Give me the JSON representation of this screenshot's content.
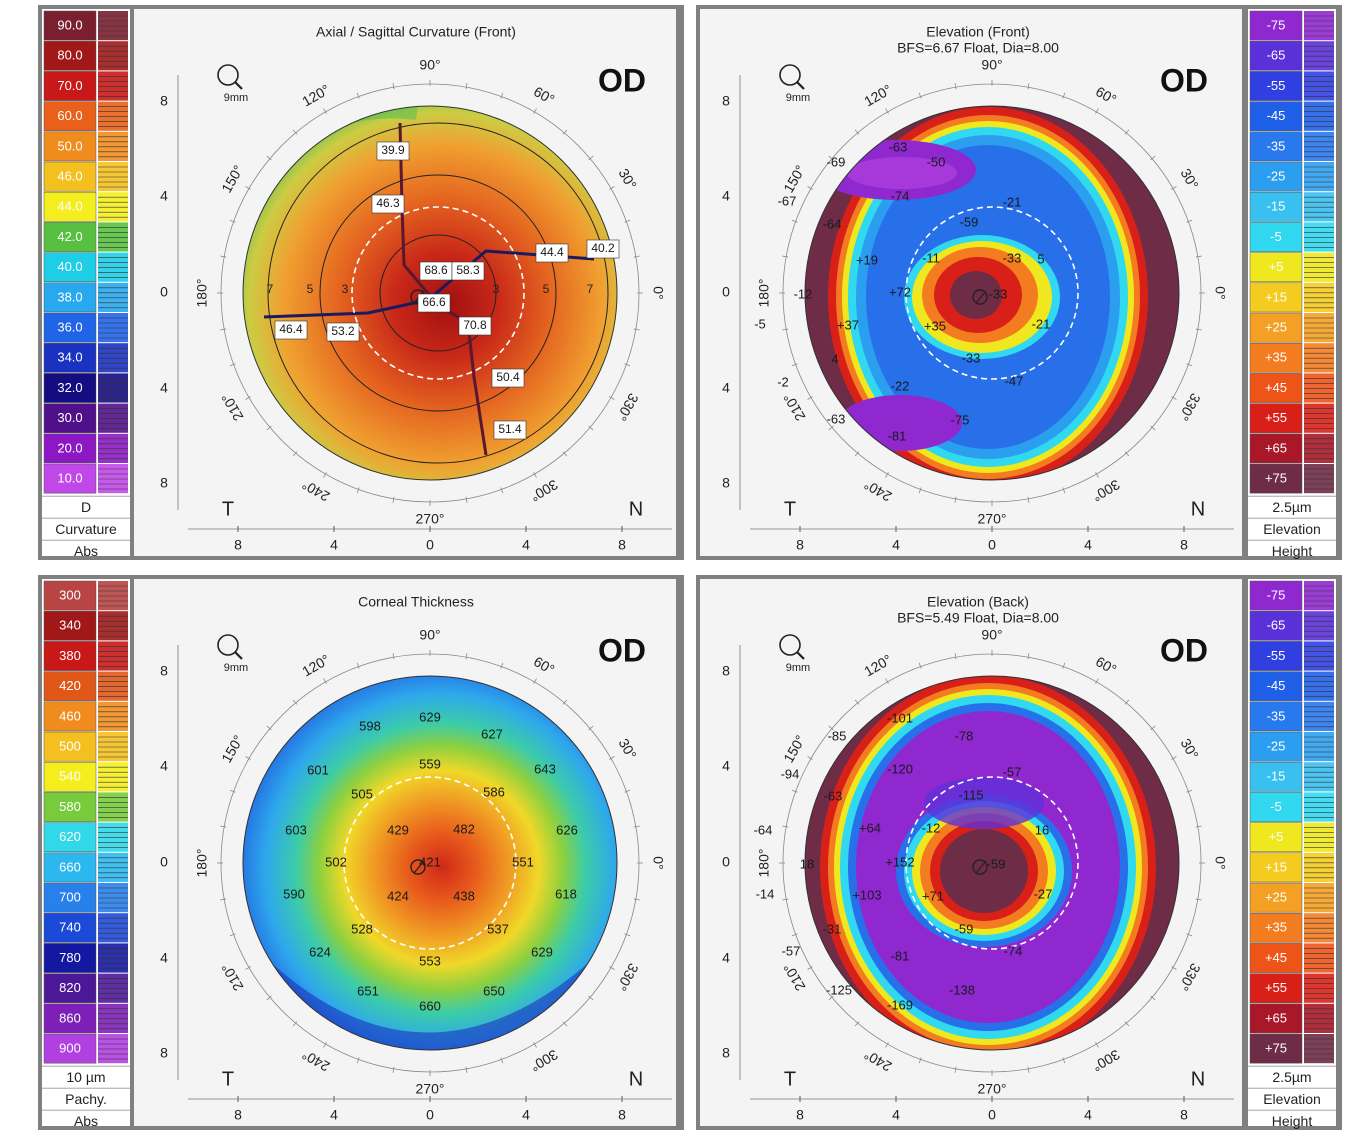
{
  "panels": [
    {
      "id": "axial",
      "title": "Axial / Sagittal Curvature (Front)",
      "subtitle": "",
      "eye": "OD",
      "zoom": "9mm",
      "side_left": "T",
      "side_right": "N",
      "angles": [
        "90°",
        "60°",
        "30°",
        "0°",
        "330°",
        "300°",
        "270°",
        "240°",
        "210°",
        "180°",
        "150°",
        "120°"
      ],
      "axis_ticks": [
        "8",
        "4",
        "0",
        "4",
        "8"
      ],
      "scale_side": "left",
      "scale": {
        "values": [
          "90.0",
          "80.0",
          "70.0",
          "60.0",
          "50.0",
          "46.0",
          "44.0",
          "42.0",
          "40.0",
          "38.0",
          "36.0",
          "34.0",
          "32.0",
          "30.0",
          "20.0",
          "10.0"
        ],
        "colors": [
          "#7a1f2e",
          "#a01818",
          "#c81818",
          "#e8601a",
          "#f08c1e",
          "#f4c020",
          "#f4ee1e",
          "#58c040",
          "#1ecde6",
          "#28a8ee",
          "#2064e8",
          "#1a32c0",
          "#140c80",
          "#50108a",
          "#8c18c4",
          "#c048e8"
        ],
        "footer": [
          "D",
          "Curvature",
          "Abs"
        ]
      },
      "map": {
        "type": "axial",
        "stops": [
          [
            "0%",
            "#a01010"
          ],
          [
            "22%",
            "#c82818"
          ],
          [
            "45%",
            "#e46420"
          ],
          [
            "68%",
            "#f0a030"
          ],
          [
            "82%",
            "#cccc44"
          ],
          [
            "92%",
            "#64c050"
          ],
          [
            "100%",
            "#48b4e8"
          ]
        ]
      },
      "values": [
        {
          "t": "39.9",
          "bg": "#ffffff"
        },
        {
          "t": "46.3",
          "bg": "#ffffff"
        },
        {
          "t": "68.6",
          "bg": "#ffffff"
        },
        {
          "t": "58.3",
          "bg": "#ffffff"
        },
        {
          "t": "44.4",
          "bg": "#ffffff"
        },
        {
          "t": "40.2",
          "bg": "#ffffff"
        },
        {
          "t": "66.6",
          "bg": "#ffffff"
        },
        {
          "t": "46.4",
          "bg": "#ffffff"
        },
        {
          "t": "53.2",
          "bg": "#ffffff"
        },
        {
          "t": "70.8",
          "bg": "#ffffff"
        },
        {
          "t": "50.4",
          "bg": "#ffffff"
        },
        {
          "t": "51.4",
          "bg": "#ffffff"
        }
      ],
      "ring_labels": [
        "7",
        "5",
        "3",
        "3",
        "5",
        "7"
      ]
    },
    {
      "id": "elev-front",
      "title": "Elevation (Front)",
      "subtitle": "BFS=6.67 Float, Dia=8.00",
      "eye": "OD",
      "zoom": "9mm",
      "side_left": "T",
      "side_right": "N",
      "angles": [
        "90°",
        "60°",
        "30°",
        "0°",
        "330°",
        "300°",
        "270°",
        "240°",
        "210°",
        "180°",
        "150°",
        "120°"
      ],
      "axis_ticks": [
        "8",
        "4",
        "0",
        "4",
        "8"
      ],
      "scale_side": "right",
      "scale": {
        "values": [
          "-75",
          "-65",
          "-55",
          "-45",
          "-35",
          "-25",
          "-15",
          "-5",
          "+5",
          "+15",
          "+25",
          "+35",
          "+45",
          "+55",
          "+65",
          "+75"
        ],
        "colors": [
          "#9028d0",
          "#5a30d8",
          "#3040e0",
          "#2060e8",
          "#2878ee",
          "#2c9ef0",
          "#38c0f0",
          "#30d8f0",
          "#f0e81e",
          "#f4cc20",
          "#f4a024",
          "#f47c20",
          "#ee5418",
          "#d82018",
          "#a81828",
          "#6e2c46"
        ],
        "footer": [
          "2.5µm",
          "Elevation",
          "Height"
        ]
      },
      "map": {
        "type": "elev-front"
      },
      "values": [
        {
          "t": "-69"
        },
        {
          "t": "-63"
        },
        {
          "t": "-50"
        },
        {
          "t": "-67"
        },
        {
          "t": "-74"
        },
        {
          "t": "-21"
        },
        {
          "t": "-64"
        },
        {
          "t": "-59"
        },
        {
          "t": "-33"
        },
        {
          "t": "+19"
        },
        {
          "t": "-11"
        },
        {
          "t": "5"
        },
        {
          "t": "-12"
        },
        {
          "t": "+72"
        },
        {
          "t": "-33"
        },
        {
          "t": "-5"
        },
        {
          "t": "+37"
        },
        {
          "t": "+35"
        },
        {
          "t": "-21"
        },
        {
          "t": "4"
        },
        {
          "t": "-33"
        },
        {
          "t": "-2"
        },
        {
          "t": "-22"
        },
        {
          "t": "-47"
        },
        {
          "t": "-63"
        },
        {
          "t": "-75"
        },
        {
          "t": "-81"
        }
      ],
      "ring_labels": []
    },
    {
      "id": "pachy",
      "title": "Corneal Thickness",
      "subtitle": "",
      "eye": "OD",
      "zoom": "9mm",
      "side_left": "T",
      "side_right": "N",
      "angles": [
        "90°",
        "60°",
        "30°",
        "0°",
        "330°",
        "300°",
        "270°",
        "240°",
        "210°",
        "180°",
        "150°",
        "120°"
      ],
      "axis_ticks": [
        "8",
        "4",
        "0",
        "4",
        "8"
      ],
      "scale_side": "left",
      "scale": {
        "values": [
          "300",
          "340",
          "380",
          "420",
          "460",
          "500",
          "540",
          "580",
          "620",
          "660",
          "700",
          "740",
          "780",
          "820",
          "860",
          "900"
        ],
        "colors": [
          "#b84444",
          "#a01818",
          "#c81818",
          "#e05818",
          "#f08c1e",
          "#f4c020",
          "#f4ee1e",
          "#78cc3c",
          "#30d8e8",
          "#2cb8ee",
          "#2880ea",
          "#1c4ad8",
          "#1418a0",
          "#4c1898",
          "#7c20b8",
          "#b040e0"
        ],
        "footer": [
          "10 µm",
          "Pachy.",
          "Abs"
        ]
      },
      "map": {
        "type": "pachy",
        "stops": [
          [
            "0%",
            "#d02818"
          ],
          [
            "14%",
            "#e85c1c"
          ],
          [
            "27%",
            "#f09a24"
          ],
          [
            "39%",
            "#f0d828"
          ],
          [
            "49%",
            "#8cd040"
          ],
          [
            "58%",
            "#3ccca8"
          ],
          [
            "70%",
            "#2ea8ec"
          ],
          [
            "84%",
            "#2060e0"
          ],
          [
            "100%",
            "#1018a8"
          ]
        ]
      },
      "values": [
        {
          "t": "598"
        },
        {
          "t": "629"
        },
        {
          "t": "627"
        },
        {
          "t": "559"
        },
        {
          "t": "601"
        },
        {
          "t": "505"
        },
        {
          "t": "586"
        },
        {
          "t": "643"
        },
        {
          "t": "429"
        },
        {
          "t": "482"
        },
        {
          "t": "603"
        },
        {
          "t": "626"
        },
        {
          "t": "502"
        },
        {
          "t": "421"
        },
        {
          "t": "551"
        },
        {
          "t": "424"
        },
        {
          "t": "438"
        },
        {
          "t": "590"
        },
        {
          "t": "618"
        },
        {
          "t": "528"
        },
        {
          "t": "537"
        },
        {
          "t": "624"
        },
        {
          "t": "553"
        },
        {
          "t": "629"
        },
        {
          "t": "651"
        },
        {
          "t": "650"
        },
        {
          "t": "660"
        }
      ],
      "ring_labels": []
    },
    {
      "id": "elev-back",
      "title": "Elevation (Back)",
      "subtitle": "BFS=5.49 Float, Dia=8.00",
      "eye": "OD",
      "zoom": "9mm",
      "side_left": "T",
      "side_right": "N",
      "angles": [
        "90°",
        "60°",
        "30°",
        "0°",
        "330°",
        "300°",
        "270°",
        "240°",
        "210°",
        "180°",
        "150°",
        "120°"
      ],
      "axis_ticks": [
        "8",
        "4",
        "0",
        "4",
        "8"
      ],
      "scale_side": "right",
      "scale": {
        "values": [
          "-75",
          "-65",
          "-55",
          "-45",
          "-35",
          "-25",
          "-15",
          "-5",
          "+5",
          "+15",
          "+25",
          "+35",
          "+45",
          "+55",
          "+65",
          "+75"
        ],
        "colors": [
          "#9028d0",
          "#5a30d8",
          "#3040e0",
          "#2060e8",
          "#2878ee",
          "#2c9ef0",
          "#38c0f0",
          "#30d8f0",
          "#f0e81e",
          "#f4cc20",
          "#f4a024",
          "#f47c20",
          "#ee5418",
          "#d82018",
          "#a81828",
          "#6e2c46"
        ],
        "footer": [
          "2.5µm",
          "Elevation",
          "Height"
        ]
      },
      "map": {
        "type": "elev-back"
      },
      "values": [
        {
          "t": "-101"
        },
        {
          "t": "-85"
        },
        {
          "t": "-78"
        },
        {
          "t": "-120"
        },
        {
          "t": "-94"
        },
        {
          "t": "-57"
        },
        {
          "t": "-63"
        },
        {
          "t": "-115"
        },
        {
          "t": "-64"
        },
        {
          "t": "+64"
        },
        {
          "t": "-12"
        },
        {
          "t": "16"
        },
        {
          "t": "18"
        },
        {
          "t": "+152"
        },
        {
          "t": "-59"
        },
        {
          "t": "-14"
        },
        {
          "t": "+103"
        },
        {
          "t": "+71"
        },
        {
          "t": "-27"
        },
        {
          "t": "-31"
        },
        {
          "t": "-59"
        },
        {
          "t": "-57"
        },
        {
          "t": "-81"
        },
        {
          "t": "-74"
        },
        {
          "t": "-125"
        },
        {
          "t": "-169"
        },
        {
          "t": "-138"
        }
      ],
      "ring_labels": []
    }
  ]
}
